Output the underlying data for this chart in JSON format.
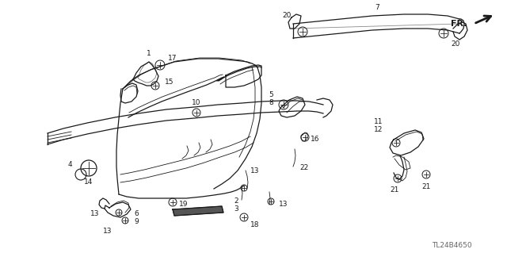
{
  "bg_color": "#ffffff",
  "line_color": "#1a1a1a",
  "fig_width": 6.4,
  "fig_height": 3.19,
  "dpi": 100,
  "diagram_id": "TL24B4650"
}
